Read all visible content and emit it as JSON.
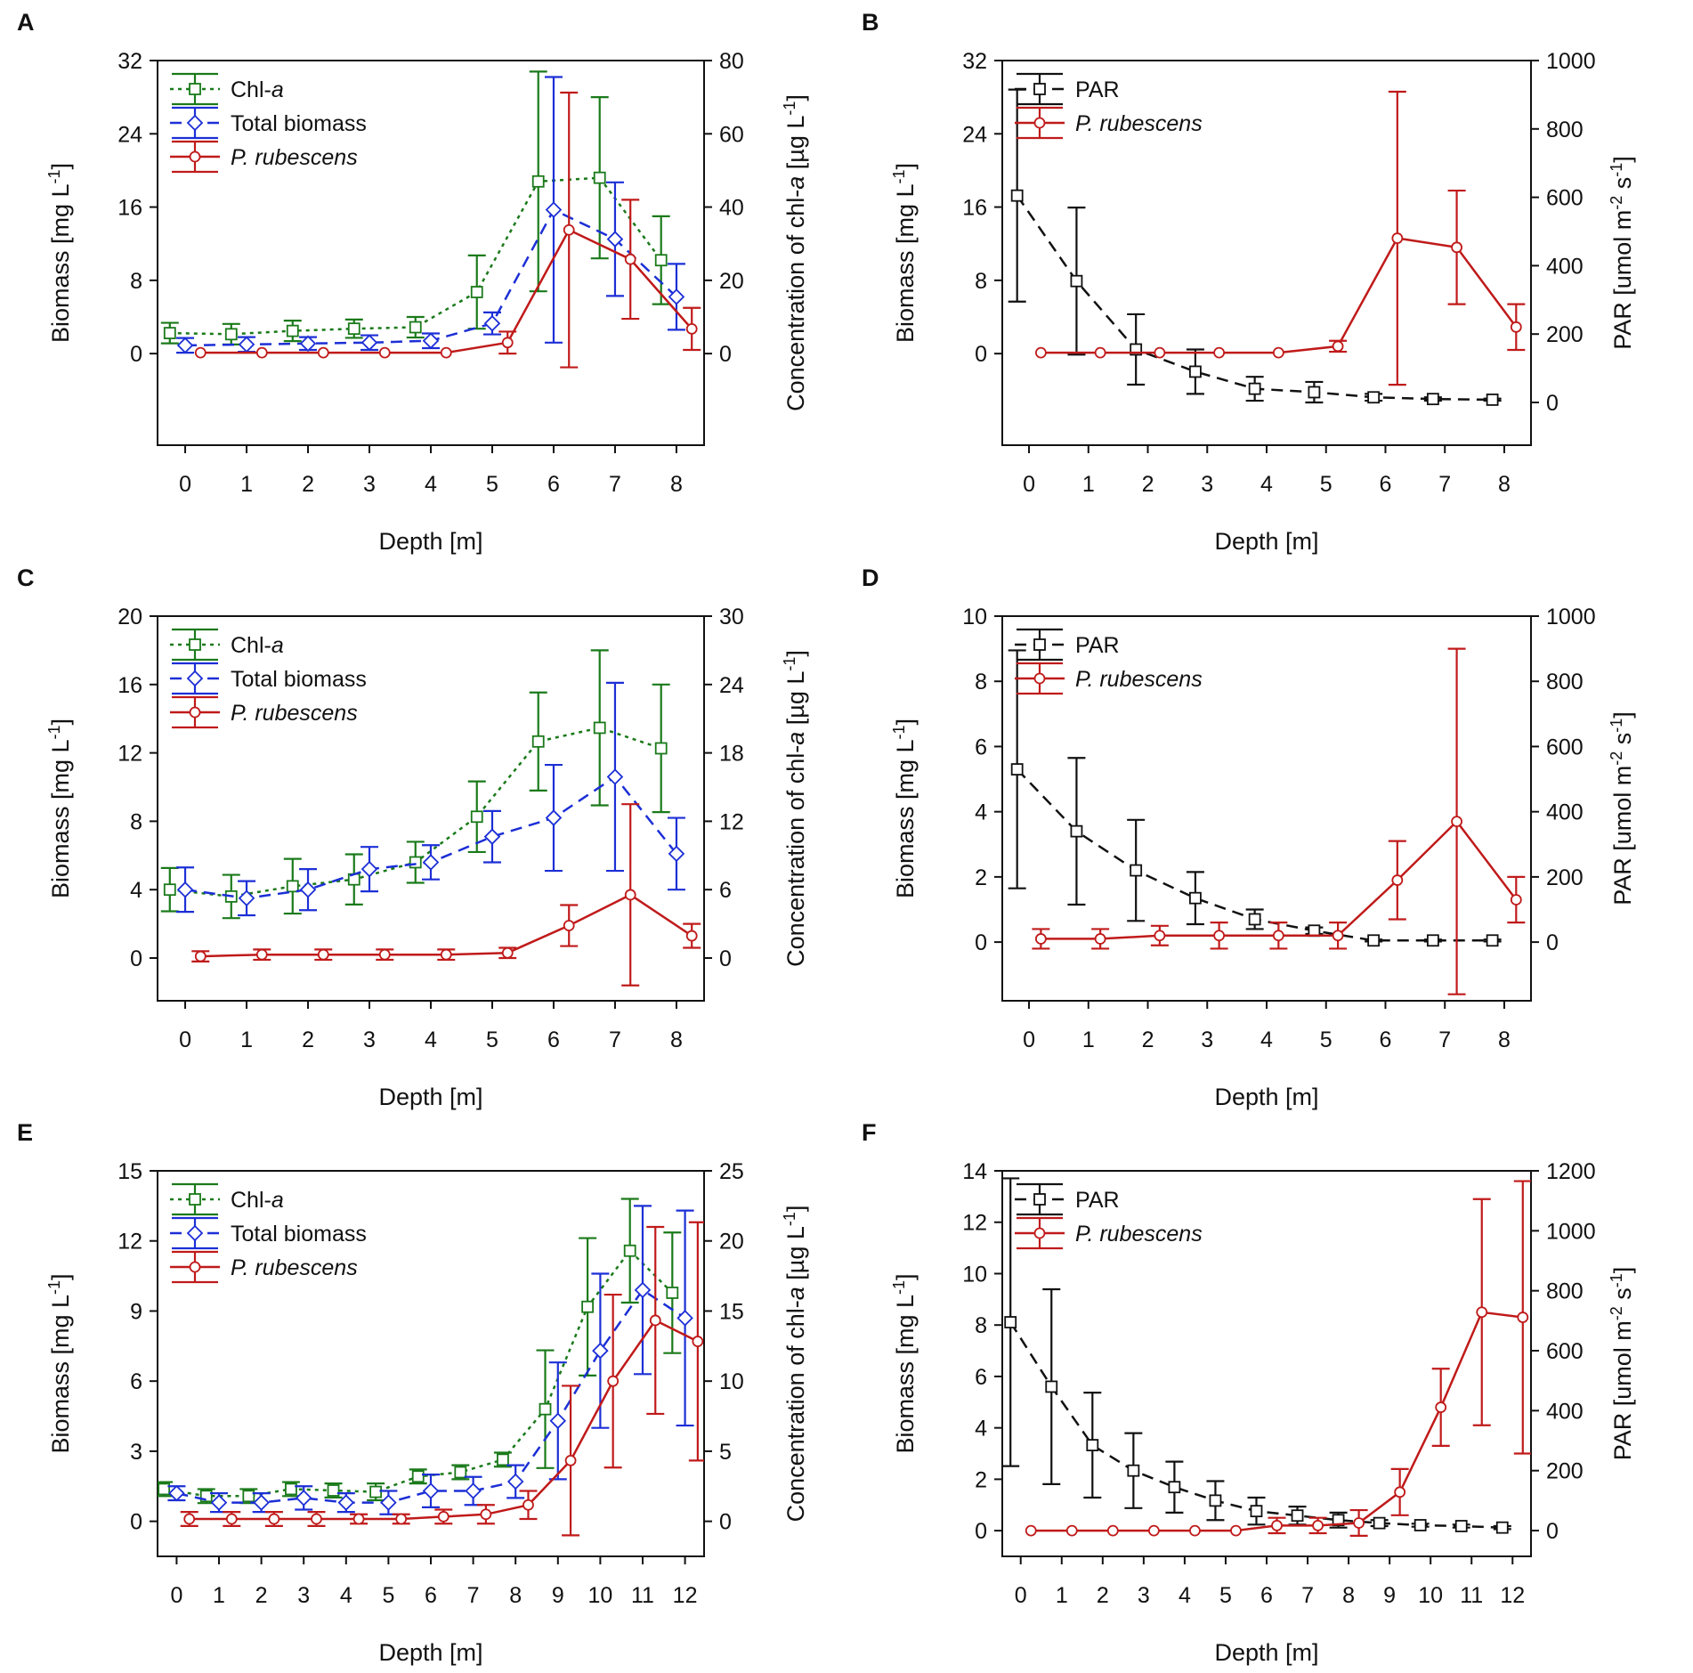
{
  "colors": {
    "chl": "#1a7a1a",
    "total": "#1c2fd6",
    "prub": "#c01a1a",
    "par": "#111111"
  },
  "chart_data": [
    {
      "panel": "A",
      "type": "line",
      "xlabel": "Depth [m]",
      "ylabel": "Biomass [mg L",
      "ylabel_sup": "-1",
      "ylabel_end": "]",
      "y2label_pre": "Concentration of chl-",
      "y2label_it": "a",
      "y2label_mid": " [µg L",
      "y2label_sup": "-1",
      "y2label_end": "]",
      "xticks": [
        0,
        1,
        2,
        3,
        4,
        5,
        6,
        7,
        8
      ],
      "xlim": [
        -0.45,
        8.45
      ],
      "ylim": [
        -10,
        32
      ],
      "yticks": [
        0,
        8,
        16,
        24,
        32
      ],
      "y2lim": [
        -25,
        80
      ],
      "y2ticks": [
        0,
        20,
        40,
        60,
        80
      ],
      "legend": [
        {
          "key": "chl",
          "label": "Chl-",
          "label_it": "a"
        },
        {
          "key": "total",
          "label": "Total biomass",
          "label_it": ""
        },
        {
          "key": "prub",
          "label": "",
          "label_it": "P. rubescens"
        }
      ],
      "series": [
        {
          "key": "chl",
          "name": "Chl-a",
          "axis": "y2",
          "marker": "square",
          "dash": "4,5",
          "x": [
            -0.25,
            0.75,
            1.75,
            2.75,
            3.75,
            4.75,
            5.75,
            6.75,
            7.75
          ],
          "y": [
            5.6,
            5.3,
            6.2,
            6.8,
            7.2,
            16.8,
            47,
            48,
            25.5
          ],
          "err": [
            2.8,
            2.8,
            2.8,
            2.5,
            2.8,
            10,
            30,
            22,
            12
          ]
        },
        {
          "key": "total",
          "name": "Total biomass",
          "axis": "y",
          "marker": "diamond",
          "dash": "13,8",
          "x": [
            0,
            1,
            2,
            3,
            4,
            5,
            6,
            7,
            8
          ],
          "y": [
            0.9,
            1.0,
            1.1,
            1.2,
            1.4,
            3.3,
            15.7,
            12.5,
            6.2
          ],
          "err": [
            0.8,
            0.8,
            0.7,
            0.8,
            0.8,
            1.2,
            14.5,
            6.2,
            3.6
          ]
        },
        {
          "key": "prub",
          "name": "P. rubescens",
          "axis": "y",
          "marker": "circle",
          "dash": "",
          "x": [
            0.25,
            1.25,
            2.25,
            3.25,
            4.25,
            5.25,
            6.25,
            7.25,
            8.25
          ],
          "y": [
            0.1,
            0.1,
            0.1,
            0.1,
            0.1,
            1.2,
            13.5,
            10.3,
            2.7
          ],
          "err": [
            0,
            0,
            0,
            0,
            0,
            1.2,
            15,
            6.5,
            2.3
          ]
        }
      ]
    },
    {
      "panel": "B",
      "type": "line",
      "xlabel": "Depth [m]",
      "ylabel": "Biomass [mg L",
      "ylabel_sup": "-1",
      "ylabel_end": "]",
      "y2label_pre": "PAR [umol m",
      "y2label_sup": "-2",
      "y2label_mid": " s",
      "y2label_sup2": "-1",
      "y2label_end": "]",
      "xticks": [
        0,
        1,
        2,
        3,
        4,
        5,
        6,
        7,
        8
      ],
      "xlim": [
        -0.45,
        8.45
      ],
      "ylim": [
        -10,
        32
      ],
      "yticks": [
        0,
        8,
        16,
        24,
        32
      ],
      "y2lim": [
        -125,
        1000
      ],
      "y2ticks": [
        0,
        200,
        400,
        600,
        800,
        1000
      ],
      "legend": [
        {
          "key": "par",
          "label": "PAR",
          "label_it": ""
        },
        {
          "key": "prub",
          "label": "",
          "label_it": "P. rubescens"
        }
      ],
      "series": [
        {
          "key": "par",
          "name": "PAR",
          "axis": "y2",
          "marker": "square",
          "dash": "13,8",
          "x": [
            -0.2,
            0.8,
            1.8,
            2.8,
            3.8,
            4.8,
            5.8,
            6.8,
            7.8
          ],
          "y": [
            605,
            355,
            155,
            90,
            40,
            30,
            15,
            10,
            8
          ],
          "err": [
            310,
            215,
            103,
            65,
            35,
            30,
            10,
            5,
            3
          ]
        },
        {
          "key": "prub",
          "name": "P. rubescens",
          "axis": "y",
          "marker": "circle",
          "dash": "",
          "x": [
            0.2,
            1.2,
            2.2,
            3.2,
            4.2,
            5.2,
            6.2,
            7.2,
            8.2
          ],
          "y": [
            0.1,
            0.1,
            0.1,
            0.1,
            0.1,
            0.8,
            12.6,
            11.6,
            2.9
          ],
          "err": [
            0,
            0,
            0,
            0,
            0,
            0.6,
            16,
            6.2,
            2.5
          ]
        }
      ]
    },
    {
      "panel": "C",
      "type": "line",
      "xlabel": "Depth [m]",
      "ylabel": "Biomass [mg L",
      "ylabel_sup": "-1",
      "ylabel_end": "]",
      "y2label_pre": "Concentration of chl-",
      "y2label_it": "a",
      "y2label_mid": " [µg L",
      "y2label_sup": "-1",
      "y2label_end": "]",
      "xticks": [
        0,
        1,
        2,
        3,
        4,
        5,
        6,
        7,
        8
      ],
      "xlim": [
        -0.45,
        8.45
      ],
      "ylim": [
        -2.5,
        20
      ],
      "yticks": [
        0,
        4,
        8,
        12,
        16,
        20
      ],
      "y2lim": [
        -3.75,
        30
      ],
      "y2ticks": [
        0,
        6,
        12,
        18,
        24,
        30
      ],
      "legend": [
        {
          "key": "chl",
          "label": "Chl-",
          "label_it": "a"
        },
        {
          "key": "total",
          "label": "Total biomass",
          "label_it": ""
        },
        {
          "key": "prub",
          "label": "",
          "label_it": "P. rubescens"
        }
      ],
      "series": [
        {
          "key": "chl",
          "name": "Chl-a",
          "axis": "y2",
          "marker": "square",
          "dash": "4,5",
          "x": [
            -0.25,
            0.75,
            1.75,
            2.75,
            3.75,
            4.75,
            5.75,
            6.75,
            7.75
          ],
          "y": [
            6.0,
            5.4,
            6.3,
            6.9,
            8.4,
            12.4,
            19.0,
            20.2,
            18.4
          ],
          "err": [
            1.9,
            1.9,
            2.4,
            2.2,
            1.8,
            3.1,
            4.3,
            6.8,
            5.6
          ]
        },
        {
          "key": "total",
          "name": "Total biomass",
          "axis": "y",
          "marker": "diamond",
          "dash": "13,8",
          "x": [
            0,
            1,
            2,
            3,
            4,
            5,
            6,
            7,
            8
          ],
          "y": [
            4.0,
            3.5,
            4.0,
            5.2,
            5.6,
            7.1,
            8.2,
            10.6,
            6.1
          ],
          "err": [
            1.3,
            1.0,
            1.2,
            1.3,
            1.0,
            1.5,
            3.1,
            5.5,
            2.1
          ]
        },
        {
          "key": "prub",
          "name": "P. rubescens",
          "axis": "y",
          "marker": "circle",
          "dash": "",
          "x": [
            0.25,
            1.25,
            2.25,
            3.25,
            4.25,
            5.25,
            6.25,
            7.25,
            8.25
          ],
          "y": [
            0.1,
            0.2,
            0.2,
            0.2,
            0.2,
            0.3,
            1.9,
            3.7,
            1.3
          ],
          "err": [
            0.3,
            0.3,
            0.3,
            0.3,
            0.3,
            0.3,
            1.2,
            5.3,
            0.7
          ]
        }
      ]
    },
    {
      "panel": "D",
      "type": "line",
      "xlabel": "Depth [m]",
      "ylabel": "Biomass [mg L",
      "ylabel_sup": "-1",
      "ylabel_end": "]",
      "y2label_pre": "PAR [umol m",
      "y2label_sup": "-2",
      "y2label_mid": " s",
      "y2label_sup2": "-1",
      "y2label_end": "]",
      "xticks": [
        0,
        1,
        2,
        3,
        4,
        5,
        6,
        7,
        8
      ],
      "xlim": [
        -0.45,
        8.45
      ],
      "ylim": [
        -1.8,
        10
      ],
      "yticks": [
        0,
        2,
        4,
        6,
        8,
        10
      ],
      "y2lim": [
        -180,
        1000
      ],
      "y2ticks": [
        0,
        200,
        400,
        600,
        800,
        1000
      ],
      "legend": [
        {
          "key": "par",
          "label": "PAR",
          "label_it": ""
        },
        {
          "key": "prub",
          "label": "",
          "label_it": "P. rubescens"
        }
      ],
      "series": [
        {
          "key": "par",
          "name": "PAR",
          "axis": "y2",
          "marker": "square",
          "dash": "13,8",
          "x": [
            -0.2,
            0.8,
            1.8,
            2.8,
            3.8,
            4.8,
            5.8,
            6.8,
            7.8
          ],
          "y": [
            530,
            340,
            220,
            135,
            70,
            35,
            5,
            5,
            5
          ],
          "err": [
            365,
            225,
            155,
            80,
            30,
            10,
            3,
            3,
            3
          ]
        },
        {
          "key": "prub",
          "name": "P. rubescens",
          "axis": "y",
          "marker": "circle",
          "dash": "",
          "x": [
            0.2,
            1.2,
            2.2,
            3.2,
            4.2,
            5.2,
            6.2,
            7.2,
            8.2
          ],
          "y": [
            0.1,
            0.1,
            0.2,
            0.2,
            0.2,
            0.2,
            1.9,
            3.7,
            1.3
          ],
          "err": [
            0.3,
            0.3,
            0.3,
            0.4,
            0.4,
            0.4,
            1.2,
            5.3,
            0.7
          ]
        }
      ]
    },
    {
      "panel": "E",
      "type": "line",
      "xlabel": "Depth [m]",
      "ylabel": "Biomass [mg L",
      "ylabel_sup": "-1",
      "ylabel_end": "]",
      "y2label_pre": "Concentration of chl-",
      "y2label_it": "a",
      "y2label_mid": " [µg L",
      "y2label_sup": "-1",
      "y2label_end": "]",
      "xticks": [
        0,
        1,
        2,
        3,
        4,
        5,
        6,
        7,
        8,
        9,
        10,
        11,
        12
      ],
      "xlim": [
        -0.45,
        12.45
      ],
      "ylim": [
        -1.5,
        15
      ],
      "yticks": [
        0,
        3,
        6,
        9,
        12,
        15
      ],
      "y2lim": [
        -2.5,
        25
      ],
      "y2ticks": [
        0,
        5,
        10,
        15,
        20,
        25
      ],
      "legend": [
        {
          "key": "chl",
          "label": "Chl-",
          "label_it": "a"
        },
        {
          "key": "total",
          "label": "Total biomass",
          "label_it": ""
        },
        {
          "key": "prub",
          "label": "",
          "label_it": "P. rubescens"
        }
      ],
      "series": [
        {
          "key": "chl",
          "name": "Chl-a",
          "axis": "y2",
          "marker": "square",
          "dash": "4,5",
          "x": [
            -0.3,
            0.7,
            1.7,
            2.7,
            3.7,
            4.7,
            5.7,
            6.7,
            7.7,
            8.7,
            9.7,
            10.7,
            11.7
          ],
          "y": [
            2.3,
            1.8,
            1.8,
            2.3,
            2.2,
            2.1,
            3.2,
            3.5,
            4.4,
            8.0,
            15.3,
            19.3,
            16.3
          ],
          "err": [
            0.5,
            0.5,
            0.5,
            0.5,
            0.5,
            0.6,
            0.5,
            0.5,
            0.5,
            4.2,
            4.9,
            3.7,
            4.3
          ]
        },
        {
          "key": "total",
          "name": "Total biomass",
          "axis": "y",
          "marker": "diamond",
          "dash": "13,8",
          "x": [
            0,
            1,
            2,
            3,
            4,
            5,
            6,
            7,
            8,
            9,
            10,
            11,
            12
          ],
          "y": [
            1.2,
            0.8,
            0.8,
            1.0,
            0.8,
            0.8,
            1.3,
            1.3,
            1.7,
            4.3,
            7.3,
            9.9,
            8.7
          ],
          "err": [
            0.3,
            0.4,
            0.4,
            0.5,
            0.4,
            0.5,
            0.7,
            0.6,
            0.7,
            2.5,
            3.3,
            3.6,
            4.6
          ]
        },
        {
          "key": "prub",
          "name": "P. rubescens",
          "axis": "y",
          "marker": "circle",
          "dash": "",
          "x": [
            0.3,
            1.3,
            2.3,
            3.3,
            4.3,
            5.3,
            6.3,
            7.3,
            8.3,
            9.3,
            10.3,
            11.3,
            12.3
          ],
          "y": [
            0.1,
            0.1,
            0.1,
            0.1,
            0.1,
            0.1,
            0.2,
            0.3,
            0.7,
            2.6,
            6.0,
            8.6,
            7.7
          ],
          "err": [
            0.3,
            0.3,
            0.3,
            0.3,
            0.2,
            0.2,
            0.3,
            0.4,
            0.6,
            3.2,
            3.7,
            4.0,
            5.1
          ]
        }
      ]
    },
    {
      "panel": "F",
      "type": "line",
      "xlabel": "Depth [m]",
      "ylabel": "Biomass [mg L",
      "ylabel_sup": "-1",
      "ylabel_end": "]",
      "y2label_pre": "PAR [umol m",
      "y2label_sup": "-2",
      "y2label_mid": " s",
      "y2label_sup2": "-1",
      "y2label_end": "]",
      "xticks": [
        0,
        1,
        2,
        3,
        4,
        5,
        6,
        7,
        8,
        9,
        10,
        11,
        12
      ],
      "xlim": [
        -0.45,
        12.45
      ],
      "ylim": [
        -1.0,
        14
      ],
      "yticks": [
        0,
        2,
        4,
        6,
        8,
        10,
        12,
        14
      ],
      "y2lim": [
        -86,
        1200
      ],
      "y2ticks": [
        0,
        200,
        400,
        600,
        800,
        1000,
        1200
      ],
      "legend": [
        {
          "key": "par",
          "label": "PAR",
          "label_it": ""
        },
        {
          "key": "prub",
          "label": "",
          "label_it": "P. rubescens"
        }
      ],
      "series": [
        {
          "key": "par",
          "name": "PAR",
          "axis": "y2",
          "marker": "square",
          "dash": "13,8",
          "x": [
            -0.25,
            0.75,
            1.75,
            2.75,
            3.75,
            4.75,
            5.75,
            6.75,
            7.75,
            8.75,
            9.75,
            10.75,
            11.75
          ],
          "y": [
            695,
            480,
            285,
            200,
            145,
            100,
            65,
            50,
            35,
            25,
            18,
            15,
            10
          ],
          "err": [
            480,
            325,
            175,
            125,
            85,
            65,
            45,
            30,
            25,
            10,
            5,
            5,
            5
          ]
        },
        {
          "key": "prub",
          "name": "P. rubescens",
          "axis": "y",
          "marker": "circle",
          "dash": "",
          "x": [
            0.25,
            1.25,
            2.25,
            3.25,
            4.25,
            5.25,
            6.25,
            7.25,
            8.25,
            9.25,
            10.25,
            11.25,
            12.25
          ],
          "y": [
            0,
            0,
            0,
            0,
            0,
            0,
            0.2,
            0.2,
            0.3,
            1.5,
            4.8,
            8.5,
            8.3
          ],
          "err": [
            0,
            0,
            0,
            0,
            0,
            0,
            0.3,
            0.3,
            0.5,
            0.9,
            1.5,
            4.4,
            5.3
          ]
        }
      ]
    }
  ]
}
